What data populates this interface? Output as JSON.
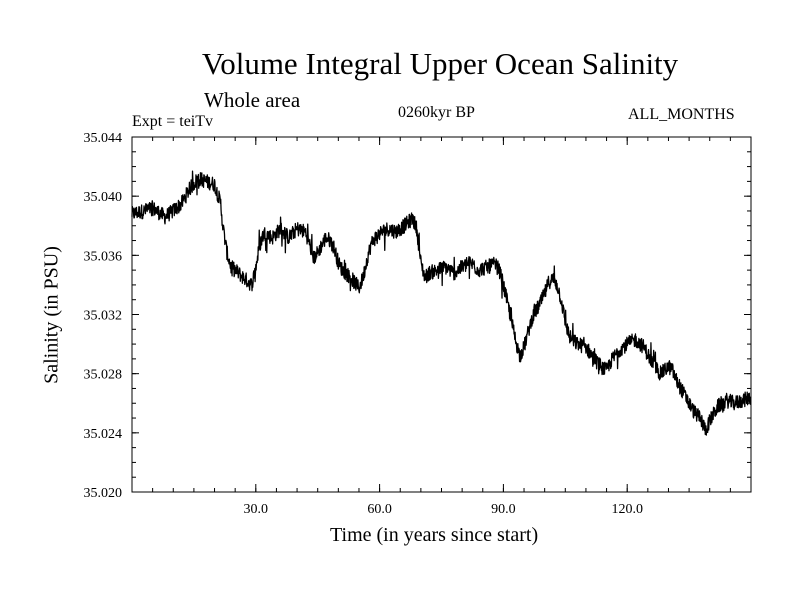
{
  "chart_data": {
    "type": "line",
    "title": "Volume Integral Upper Ocean Salinity",
    "subtitle": "Whole area",
    "experiment": "Expt = teiTv",
    "period": "0260kyr BP",
    "months": "ALL_MONTHS",
    "xlabel": "Time (in years since start)",
    "ylabel": "Salinity (in PSU)",
    "xlim": [
      0,
      150
    ],
    "ylim": [
      35.02,
      35.044
    ],
    "xticks": [
      30,
      60,
      90,
      120
    ],
    "xtick_labels": [
      "30.0",
      "60.0",
      "90.0",
      "120.0"
    ],
    "yticks": [
      35.02,
      35.024,
      35.028,
      35.032,
      35.036,
      35.04,
      35.044
    ],
    "ytick_labels": [
      "35.020",
      "35.024",
      "35.028",
      "35.032",
      "35.036",
      "35.040",
      "35.044"
    ],
    "series": [
      {
        "name": "salinity",
        "color": "#000000",
        "x": [
          0,
          3,
          5,
          8,
          10,
          12,
          14,
          16,
          18,
          20,
          21.5,
          22,
          23,
          24,
          25,
          27,
          29,
          30,
          31,
          32,
          34,
          36,
          38,
          40,
          42,
          43,
          44,
          45,
          47,
          48,
          49,
          50,
          51,
          53,
          55,
          56,
          57,
          58,
          59,
          60,
          62,
          64,
          66,
          68,
          69,
          70,
          71,
          72,
          74,
          76,
          78,
          80,
          82,
          84,
          86,
          88,
          89,
          90,
          91,
          92,
          93,
          94,
          95,
          96,
          97,
          99,
          100,
          101,
          102,
          103,
          104,
          105,
          106,
          107,
          108,
          110,
          112,
          114,
          115,
          116,
          117,
          118,
          120,
          122,
          124,
          126,
          127,
          128,
          129,
          130,
          131,
          132,
          134,
          136,
          137,
          138,
          139,
          140,
          142,
          144,
          146,
          148,
          150
        ],
        "values": [
          35.0388,
          35.039,
          35.0392,
          35.0386,
          35.039,
          35.0395,
          35.0405,
          35.0412,
          35.041,
          35.0408,
          35.0395,
          35.038,
          35.0362,
          35.0352,
          35.035,
          35.0345,
          35.034,
          35.0352,
          35.0368,
          35.0375,
          35.0372,
          35.0378,
          35.0372,
          35.0378,
          35.0376,
          35.0368,
          35.0358,
          35.0362,
          35.0372,
          35.037,
          35.0365,
          35.0355,
          35.035,
          35.0345,
          35.0338,
          35.0345,
          35.0358,
          35.0368,
          35.0372,
          35.0375,
          35.0378,
          35.0376,
          35.038,
          35.0385,
          35.0378,
          35.0355,
          35.0345,
          35.0348,
          35.035,
          35.0352,
          35.0348,
          35.0352,
          35.0355,
          35.035,
          35.0352,
          35.0354,
          35.035,
          35.034,
          35.0328,
          35.0315,
          35.0302,
          35.0292,
          35.0298,
          35.0308,
          35.0318,
          35.0328,
          35.0334,
          35.0342,
          35.0344,
          35.034,
          35.033,
          35.0315,
          35.0305,
          35.0302,
          35.03,
          35.0298,
          35.029,
          35.0284,
          35.0282,
          35.0288,
          35.0292,
          35.0296,
          35.03,
          35.0303,
          35.0298,
          35.0288,
          35.0284,
          35.028,
          35.0282,
          35.0285,
          35.0282,
          35.0275,
          35.0265,
          35.0255,
          35.0252,
          35.0248,
          35.0242,
          35.0248,
          35.0258,
          35.0262,
          35.026,
          35.0262,
          35.0264
        ]
      }
    ]
  }
}
